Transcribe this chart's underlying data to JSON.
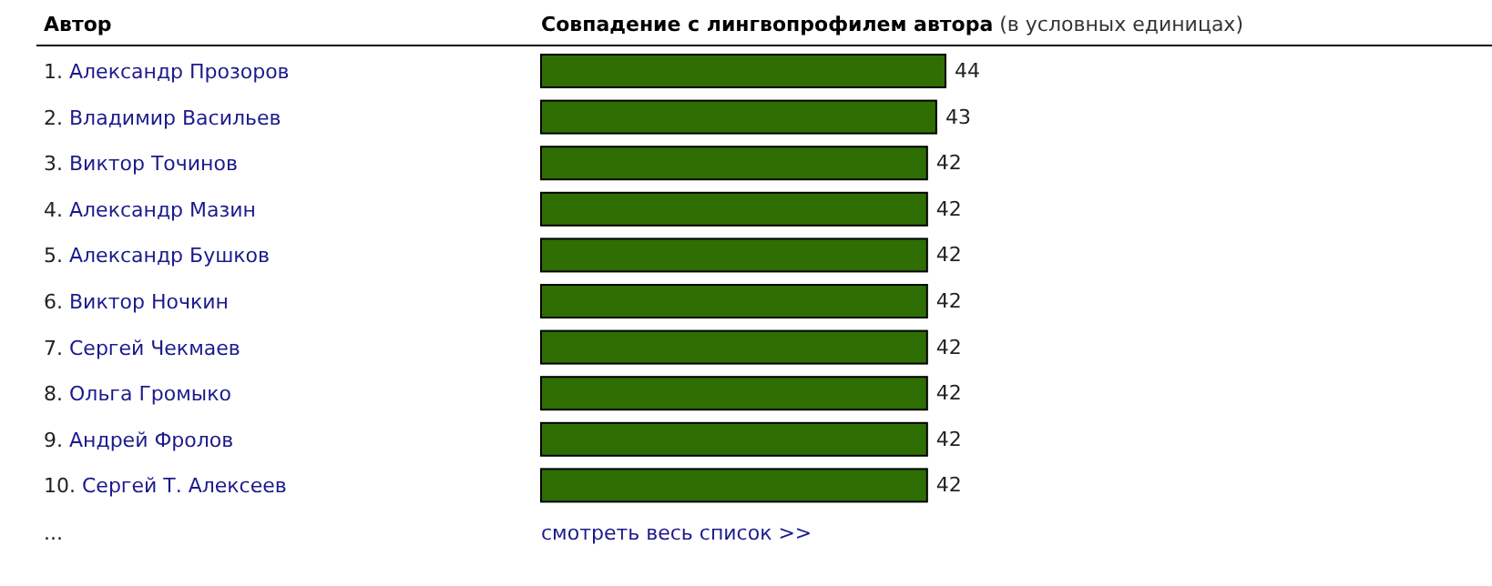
{
  "chart_data": {
    "type": "bar",
    "orientation": "horizontal",
    "ylabel": "Автор",
    "xlabel": "Совпадение с лингвопрофилем автора (в условных единицах)",
    "categories": [
      "1. Александр Прозоров",
      "2. Владимир Васильев",
      "3. Виктор Точинов",
      "4. Александр Мазин",
      "5. Александр Бушков",
      "6. Виктор Ночкин",
      "7. Сергей Чекмаев",
      "8. Ольга Громыко",
      "9. Андрей Фролов",
      "10. Сергей Т. Алексеев"
    ],
    "values": [
      44,
      43,
      42,
      42,
      42,
      42,
      42,
      42,
      42,
      42
    ],
    "color": "#2e6e02",
    "data_labels": true,
    "annotations": [
      "...",
      "смотреть весь список >>"
    ]
  }
}
